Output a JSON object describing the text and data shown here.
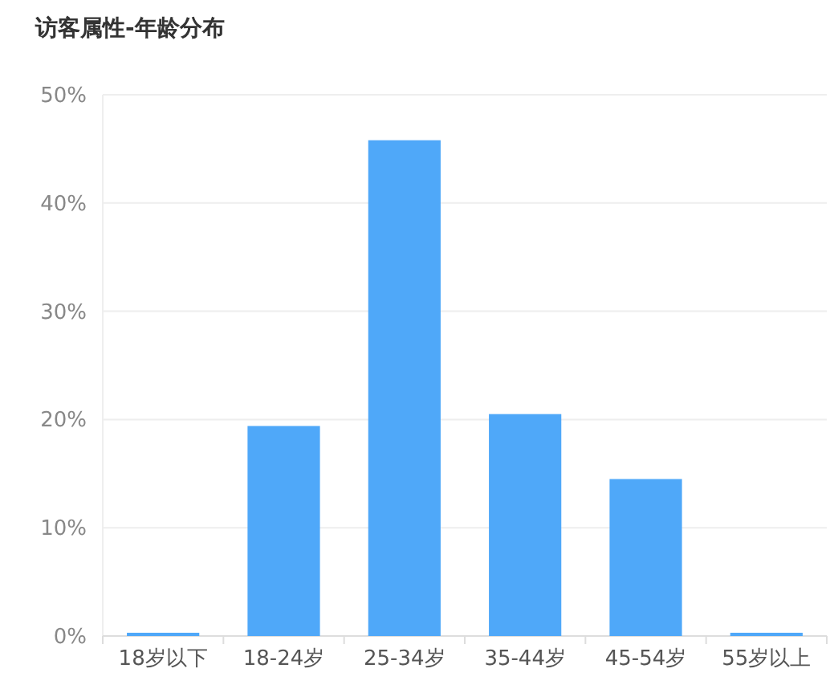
{
  "chart_data": {
    "type": "bar",
    "title": "访客属性-年龄分布",
    "categories": [
      "18岁以下",
      "18-24岁",
      "25-34岁",
      "35-44岁",
      "45-54岁",
      "55岁以上"
    ],
    "values": [
      0.3,
      19.4,
      45.8,
      20.5,
      14.5,
      0.3
    ],
    "color": "#4fa8f9",
    "ylim": [
      0,
      50
    ],
    "yticks": [
      {
        "value": 0,
        "label": "0%"
      },
      {
        "value": 10,
        "label": "10%"
      },
      {
        "value": 20,
        "label": "20%"
      },
      {
        "value": 30,
        "label": "30%"
      },
      {
        "value": 40,
        "label": "40%"
      },
      {
        "value": 50,
        "label": "50%"
      }
    ],
    "grid": "y"
  }
}
